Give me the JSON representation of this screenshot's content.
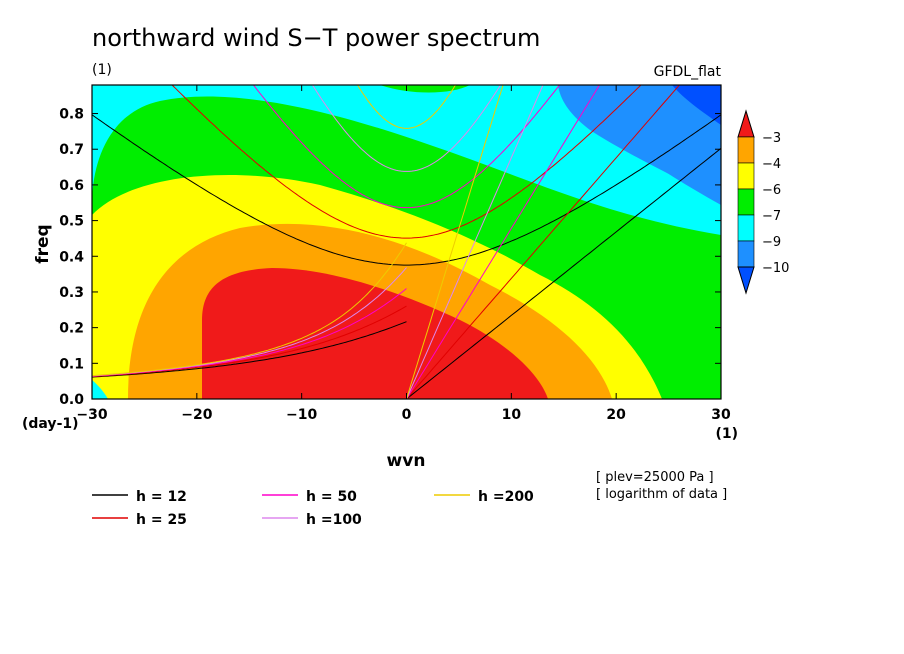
{
  "chart_data": {
    "type": "heatmap",
    "title": "northward wind S−T power spectrum",
    "subtitle": "(1)",
    "source_label": "GFDL_flat",
    "xlabel": "wvn",
    "ylabel": "freq",
    "x_unit_label": "(1)",
    "y_unit_label": "(day-1)",
    "xlim": [
      -30,
      30
    ],
    "ylim": [
      0,
      0.88
    ],
    "x_ticks": [
      -30,
      -20,
      -10,
      0,
      10,
      20,
      30
    ],
    "x_tick_labels": [
      "−30",
      "−20",
      "−10",
      "0",
      "10",
      "20",
      "30"
    ],
    "y_ticks": [
      0.0,
      0.1,
      0.2,
      0.3,
      0.4,
      0.5,
      0.6,
      0.7,
      0.8
    ],
    "y_tick_labels": [
      "0.0",
      "0.1",
      "0.2",
      "0.3",
      "0.4",
      "0.5",
      "0.6",
      "0.7",
      "0.8"
    ],
    "colorbar": {
      "levels": [
        -3,
        -4,
        -6,
        -7,
        -9,
        -10
      ],
      "labels": [
        "−3",
        "−4",
        "−6",
        "−7",
        "−9",
        "−10"
      ],
      "colors": [
        "#f01a1a",
        "#ffa500",
        "#ffff00",
        "#00ee00",
        "#00ffff",
        "#1e90ff",
        "#0050ff"
      ]
    },
    "dispersion_curves": [
      {
        "name": "h = 12",
        "h": 12,
        "color": "#000000"
      },
      {
        "name": "h = 25",
        "h": 25,
        "color": "#e00000"
      },
      {
        "name": "h = 50",
        "h": 50,
        "color": "#ff00cc"
      },
      {
        "name": "h =100",
        "h": 100,
        "color": "#dd88ee"
      },
      {
        "name": "h =200",
        "h": 200,
        "color": "#eecc00"
      }
    ],
    "annotations": [
      "[ plev=25000 Pa ]",
      "[ logarithm of data ]"
    ]
  }
}
